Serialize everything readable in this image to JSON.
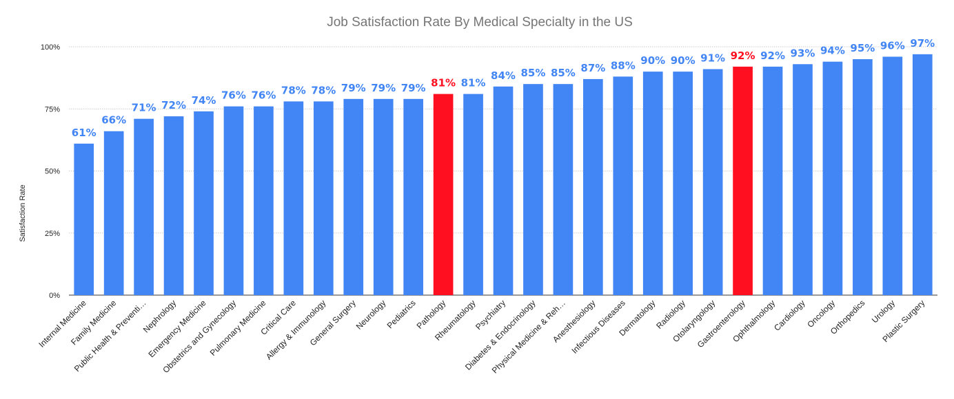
{
  "chart_data": {
    "type": "bar",
    "title": "Job Satisfaction Rate By Medical Specialty in the US",
    "xlabel": "",
    "ylabel": "Satisfaction Rate",
    "ylim": [
      0,
      100
    ],
    "yticks": [
      0,
      25,
      50,
      75,
      100
    ],
    "ytick_labels": [
      "0%",
      "25%",
      "50%",
      "75%",
      "100%"
    ],
    "gridlines": true,
    "colors": {
      "default": "#4285f4",
      "highlight": "#ff0f1f"
    },
    "categories": [
      "Internal Medicine",
      "Family Medicine",
      "Public Health & Preventi…",
      "Nephrology",
      "Emergency Medicine",
      "Obstetrics and Gynecology",
      "Pulmonary Medicine",
      "Critical Care",
      "Allergy & Immunology",
      "General Surgery",
      "Neurology",
      "Pediatrics",
      "Pathology",
      "Rheumatology",
      "Psychiatry",
      "Diabetes & Endocrinology",
      "Physical Medicine & Reh…",
      "Anesthesiology",
      "Infectious Diseases",
      "Dermatology",
      "Radiology",
      "Otolaryngology",
      "Gastroenterology",
      "Ophthalmology",
      "Cardiology",
      "Oncology",
      "Orthopedics",
      "Urology",
      "Plastic Surgery"
    ],
    "values": [
      61,
      66,
      71,
      72,
      74,
      76,
      76,
      78,
      78,
      79,
      79,
      79,
      81,
      81,
      84,
      85,
      85,
      87,
      88,
      90,
      90,
      91,
      92,
      92,
      93,
      94,
      95,
      96,
      97
    ],
    "data_labels": [
      "61%",
      "66%",
      "71%",
      "72%",
      "74%",
      "76%",
      "76%",
      "78%",
      "78%",
      "79%",
      "79%",
      "79%",
      "81%",
      "81%",
      "84%",
      "85%",
      "85%",
      "87%",
      "88%",
      "90%",
      "90%",
      "91%",
      "92%",
      "92%",
      "93%",
      "94%",
      "95%",
      "96%",
      "97%"
    ],
    "highlighted": [
      "Pathology",
      "Gastroenterology"
    ]
  }
}
